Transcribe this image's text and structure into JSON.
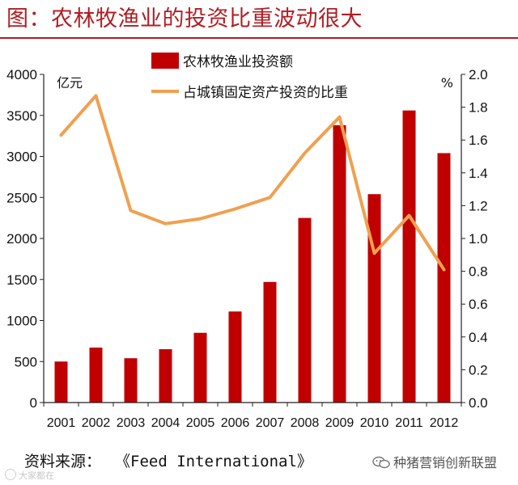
{
  "page": {
    "title": "图：农林牧渔业的投资比重波动很大",
    "source_label": "资料来源：",
    "source_name": "《Feed International》",
    "watermark_left": "大家都在",
    "watermark_right": "种猪营销创新联盟",
    "icons": {
      "watermark_right": "wechat-icon",
      "watermark_left": "weibo-icon"
    },
    "colors": {
      "accent": "#b01e23",
      "bar": "#c00000",
      "line": "#f0a050",
      "text": "#111111"
    }
  },
  "chart_data": {
    "type": "bar",
    "categories": [
      "2001",
      "2002",
      "2003",
      "2004",
      "2005",
      "2006",
      "2007",
      "2008",
      "2009",
      "2010",
      "2011",
      "2012"
    ],
    "series": [
      {
        "name": "农林牧渔业投资额",
        "kind": "bar",
        "axis": "left",
        "values": [
          500,
          670,
          540,
          650,
          850,
          1110,
          1470,
          2250,
          3380,
          2540,
          3560,
          3040
        ]
      },
      {
        "name": "占城镇固定资产投资的比重",
        "kind": "line",
        "axis": "right",
        "values": [
          1.63,
          1.87,
          1.17,
          1.09,
          1.12,
          1.18,
          1.25,
          1.52,
          1.74,
          0.91,
          1.14,
          0.81
        ]
      }
    ],
    "y_left": {
      "unit": "亿元",
      "ylim": [
        0,
        4000
      ],
      "ticks": [
        "0",
        "500",
        "1000",
        "1500",
        "2000",
        "2500",
        "3000",
        "3500",
        "4000"
      ]
    },
    "y_right": {
      "unit": "%",
      "ylim": [
        0,
        2.0
      ],
      "ticks": [
        "0.0",
        "0.2",
        "0.4",
        "0.6",
        "0.8",
        "1.0",
        "1.2",
        "1.4",
        "1.6",
        "1.8",
        "2.0"
      ]
    },
    "legend": "top-center",
    "grid": false
  }
}
